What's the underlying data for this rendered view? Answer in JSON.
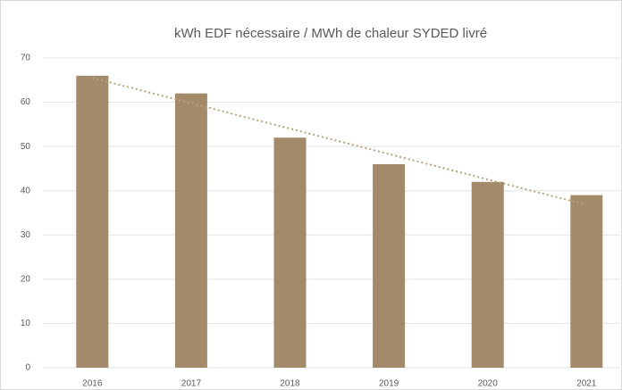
{
  "chart_data": {
    "type": "bar",
    "title": "kWh EDF nécessaire / MWh de chaleur SYDED livré",
    "categories": [
      "2016",
      "2017",
      "2018",
      "2019",
      "2020",
      "2021"
    ],
    "values": [
      66,
      62,
      52,
      46,
      42,
      39
    ],
    "color": "#a28a6a",
    "trendline": true,
    "trendline_color": "#b9a27f",
    "ylim": [
      0,
      70
    ],
    "yticks": [
      0,
      10,
      20,
      30,
      40,
      50,
      60,
      70
    ],
    "grid": true
  }
}
